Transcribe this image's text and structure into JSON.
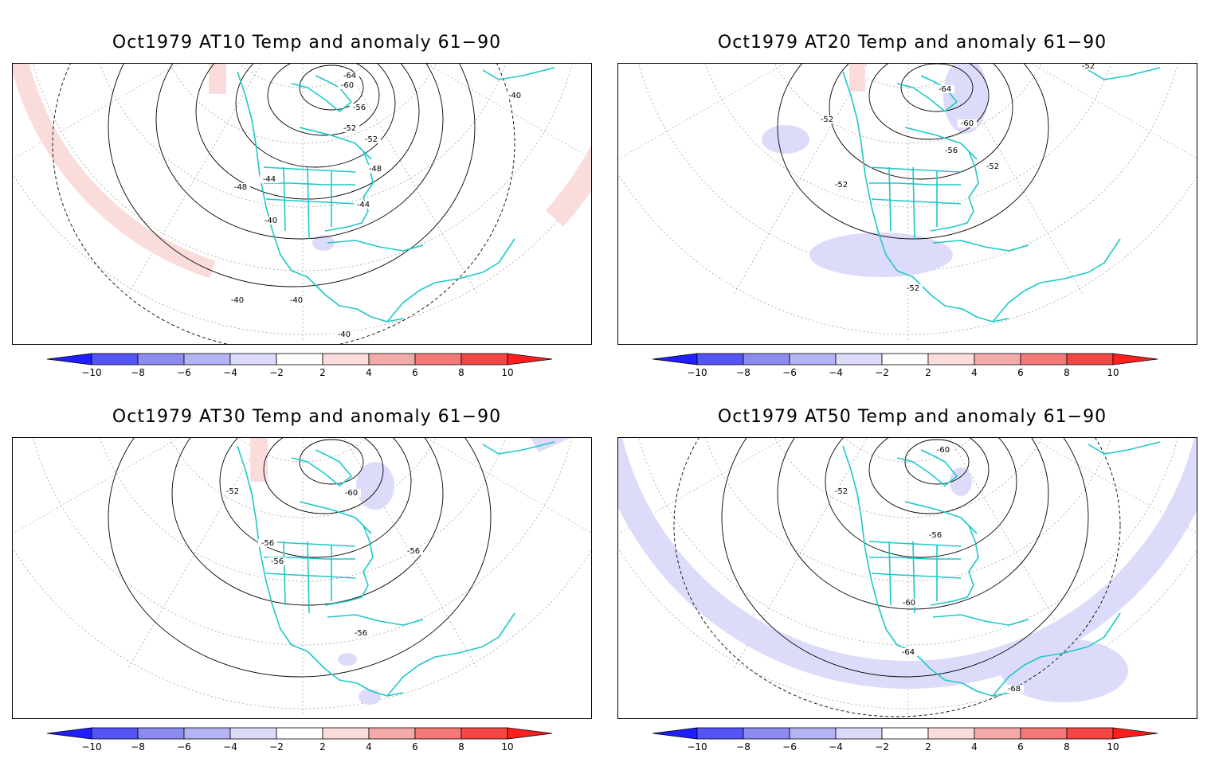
{
  "panels": [
    {
      "title": "Oct1979 AT10 Temp and anomaly 61−90",
      "contour_labels": [
        "-64",
        "-60",
        "-56",
        "-52",
        "-52",
        "-48",
        "-48",
        "-44",
        "-44",
        "-40",
        "-40",
        "-40",
        "-40",
        "-40"
      ],
      "anomaly": "warm-band"
    },
    {
      "title": "Oct1979 AT20 Temp and anomaly 61−90",
      "contour_labels": [
        "-64",
        "-60",
        "-56",
        "-52",
        "-52",
        "-52",
        "-52",
        "-52"
      ],
      "anomaly": "cool-patches"
    },
    {
      "title": "Oct1979 AT30 Temp and anomaly 61−90",
      "contour_labels": [
        "-60",
        "-52",
        "-56",
        "-56",
        "-56",
        "-56"
      ],
      "anomaly": "mixed"
    },
    {
      "title": "Oct1979 AT50 Temp and anomaly 61−90",
      "contour_labels": [
        "-60",
        "-52",
        "-56",
        "-60",
        "-64",
        "-68"
      ],
      "anomaly": "cool-band"
    }
  ],
  "colorbar": {
    "tick_labels": [
      "−10",
      "−8",
      "−6",
      "−4",
      "−2",
      "2",
      "4",
      "6",
      "8",
      "10"
    ],
    "colors": {
      "neg10": "#1f1fff",
      "neg8": "#5555f5",
      "neg6": "#8c8cf0",
      "neg4": "#b4b4f5",
      "neg2": "#dcdcfa",
      "zero": "#ffffff",
      "pos2": "#fadcdc",
      "pos4": "#f5aaaa",
      "pos6": "#f57878",
      "pos8": "#f54646",
      "pos10": "#ff1f1f"
    }
  },
  "map_colors": {
    "coast": "#1ec8c8",
    "contour": "#000000",
    "grid": "#9a9a9a",
    "warm_fill": "#fadcdc",
    "cool_fill": "#dcdcfa"
  }
}
